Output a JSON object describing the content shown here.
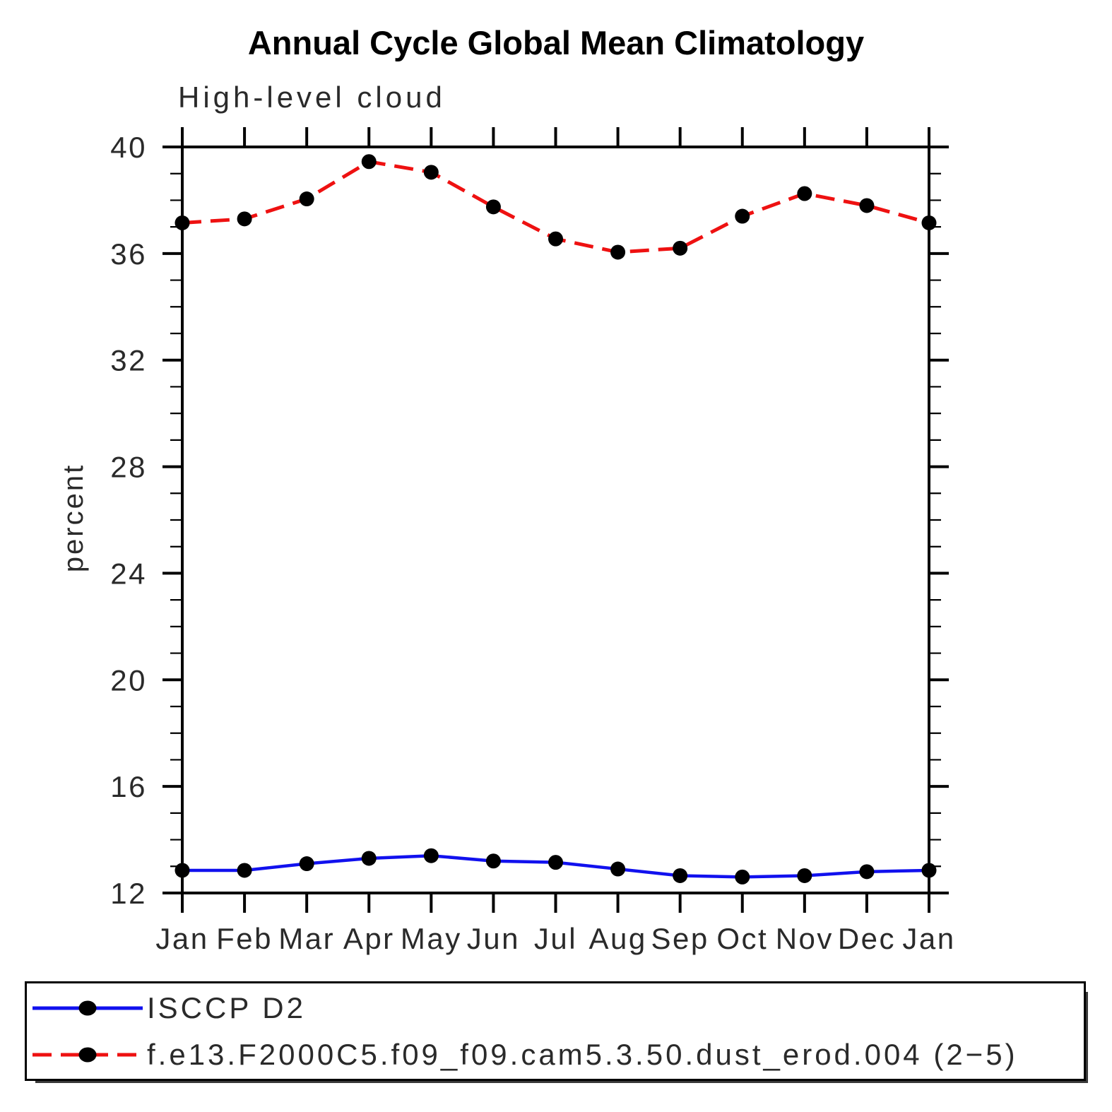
{
  "title": "Annual Cycle Global Mean Climatology",
  "chart_data": {
    "type": "line",
    "title": "Annual Cycle Global Mean Climatology",
    "subtitle": "High-level cloud",
    "ylabel": "percent",
    "categories": [
      "Jan",
      "Feb",
      "Mar",
      "Apr",
      "May",
      "Jun",
      "Jul",
      "Aug",
      "Sep",
      "Oct",
      "Nov",
      "Dec",
      "Jan"
    ],
    "ylim": [
      12,
      40
    ],
    "ytick_major_step": 4,
    "ytick_minor_step": 1,
    "ytick_labels": [
      "12",
      "16",
      "20",
      "24",
      "28",
      "32",
      "36",
      "40"
    ],
    "grid": false,
    "legend_position": "bottom-left-box",
    "axis_color": "#000000",
    "text_color": "#2a2a2a",
    "marker": "filled-circle",
    "marker_color": "#000000",
    "series": [
      {
        "name": "ISCCP D2",
        "color": "#1111ee",
        "line_style": "solid",
        "values": [
          12.85,
          12.85,
          13.1,
          13.3,
          13.4,
          13.2,
          13.15,
          12.9,
          12.65,
          12.6,
          12.65,
          12.8,
          12.85
        ]
      },
      {
        "name": "f.e13.F2000C5.f09_f09.cam5.3.50.dust_erod.004 (2−5)",
        "color": "#ee1111",
        "line_style": "dashed",
        "values": [
          37.15,
          37.3,
          38.05,
          39.45,
          39.05,
          37.75,
          36.55,
          36.05,
          36.2,
          37.4,
          38.25,
          37.8,
          37.15
        ]
      }
    ]
  }
}
